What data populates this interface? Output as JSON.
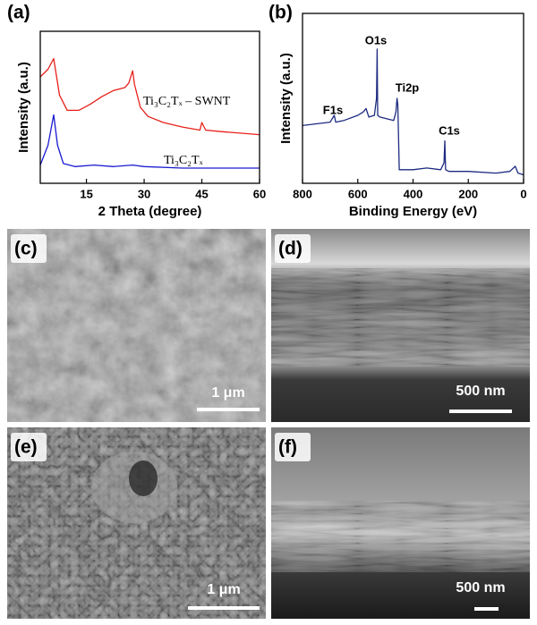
{
  "chart_data": [
    {
      "type": "line",
      "panel_label": "(a)",
      "x_label": "2 Theta (degree)",
      "y_label": "Intensity (a.u.)",
      "xlim": [
        3,
        60
      ],
      "xticks": [
        15,
        30,
        45,
        60
      ],
      "ylim": [
        0,
        10
      ],
      "series": [
        {
          "name": "Ti₃C₂Tₓ – SWNT",
          "color": "#e8201a",
          "x": [
            3,
            5,
            6.5,
            8,
            10,
            13,
            16,
            19,
            22,
            25,
            26,
            27,
            27.5,
            29,
            31,
            35,
            40,
            44.5,
            45,
            46,
            50,
            55,
            60
          ],
          "values": [
            7.0,
            7.5,
            8.2,
            5.8,
            4.8,
            4.8,
            5.2,
            5.7,
            6.1,
            6.3,
            6.6,
            7.4,
            6.5,
            5.0,
            4.4,
            4.0,
            3.7,
            3.5,
            4.0,
            3.5,
            3.4,
            3.3,
            3.2
          ]
        },
        {
          "name": "Ti₃C₂Tₓ",
          "color": "#1a1ad0",
          "x": [
            3,
            5,
            6.5,
            7.5,
            9,
            12,
            17,
            22,
            27,
            30,
            40,
            50,
            60
          ],
          "values": [
            1.2,
            2.5,
            4.5,
            2.5,
            1.3,
            1.1,
            1.2,
            1.1,
            1.2,
            1.1,
            1.0,
            1.0,
            1.0
          ]
        }
      ]
    },
    {
      "type": "line",
      "panel_label": "(b)",
      "x_label": "Binding Energy (eV)",
      "y_label": "Intensity (a.u.)",
      "xlim": [
        800,
        0
      ],
      "xticks": [
        800,
        600,
        400,
        200,
        0
      ],
      "ylim": [
        0,
        10
      ],
      "annotations": [
        "O1s",
        "Ti2p",
        "F1s",
        "C1s"
      ],
      "series": [
        {
          "color": "#1c2a80",
          "x": [
            800,
            750,
            700,
            685,
            680,
            650,
            600,
            580,
            570,
            560,
            540,
            532,
            530,
            528,
            520,
            470,
            462,
            458,
            455,
            450,
            440,
            400,
            350,
            300,
            288,
            285,
            282,
            270,
            200,
            100,
            50,
            30,
            20,
            0
          ],
          "values": [
            3.4,
            3.5,
            3.6,
            4.0,
            3.6,
            3.7,
            4.0,
            4.2,
            4.4,
            3.9,
            4.0,
            5.0,
            7.9,
            4.0,
            3.9,
            3.7,
            4.2,
            5.0,
            4.6,
            0.8,
            0.8,
            0.8,
            0.9,
            0.8,
            1.2,
            2.5,
            0.8,
            0.7,
            0.7,
            0.6,
            0.7,
            1.0,
            0.6,
            0.5
          ]
        }
      ]
    }
  ],
  "panels": [
    {
      "label": "(c)",
      "scale_bar": "1 μm"
    },
    {
      "label": "(d)",
      "scale_bar": "500 nm"
    },
    {
      "label": "(e)",
      "scale_bar": "1 μm"
    },
    {
      "label": "(f)",
      "scale_bar": "500 nm"
    }
  ]
}
